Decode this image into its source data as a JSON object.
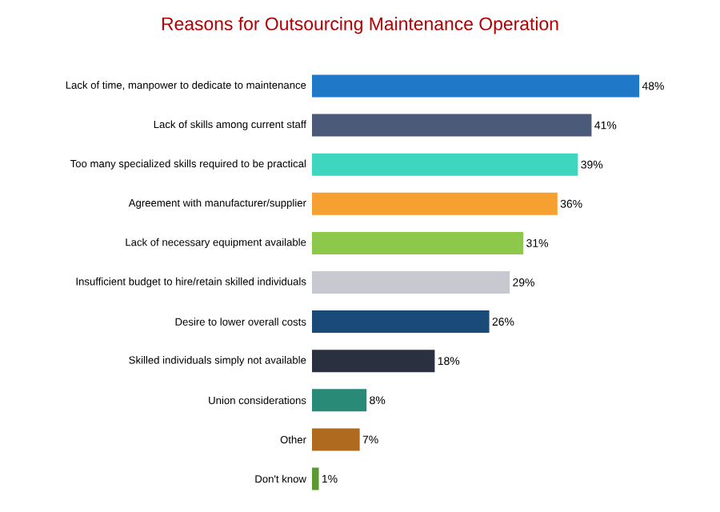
{
  "chart_data": {
    "type": "bar",
    "orientation": "horizontal",
    "title": "Reasons for Outsourcing Maintenance Operation",
    "categories": [
      "Lack of time, manpower to dedicate to maintenance",
      "Lack of skills among current staff",
      "Too many specialized skills required to be practical",
      "Agreement with manufacturer/supplier",
      "Lack of necessary equipment available",
      "Insufficient budget to hire/retain skilled individuals",
      "Desire to lower overall costs",
      "Skilled individuals simply not available",
      "Union considerations",
      "Other",
      "Don't know"
    ],
    "values": [
      48,
      41,
      39,
      36,
      31,
      29,
      26,
      18,
      8,
      7,
      1
    ],
    "value_labels": [
      "48%",
      "41%",
      "39%",
      "36%",
      "31%",
      "29%",
      "26%",
      "18%",
      "8%",
      "7%",
      "1%"
    ],
    "colors": [
      "#1f78c8",
      "#4a5a78",
      "#3fd6c0",
      "#f5a030",
      "#8cc84a",
      "#c8c8d0",
      "#1a4a78",
      "#2a3040",
      "#2a8a78",
      "#b06a20",
      "#5a9a30"
    ],
    "tick_labels": "y"
  }
}
